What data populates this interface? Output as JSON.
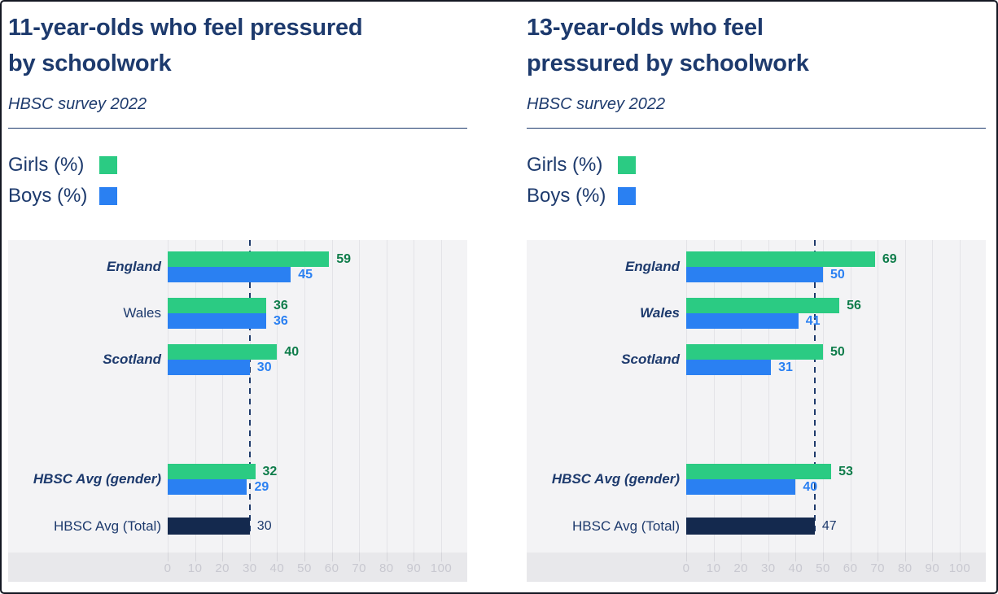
{
  "page": {
    "background": "#ffffff",
    "border_color": "#131722"
  },
  "colors": {
    "navy_text": "#1d3a6d",
    "girls_green": "#2bcb83",
    "boys_blue": "#2a80f2",
    "total_navy": "#14294e",
    "girls_value_text": "#0e7c4a",
    "boys_value_text": "#2a80f2",
    "panel_bg": "#f3f3f5",
    "axis_strip_bg": "#e8e8eb",
    "grid_line": "#e3e3e7",
    "tick_text": "#c8c8d0"
  },
  "charts": [
    {
      "title": "11-year-olds who feel pressured by schoolwork",
      "title_line1": "11-year-olds who feel pressured",
      "title_line2": "by schoolwork",
      "subtitle": "HBSC survey 2022",
      "legend": [
        {
          "label": "Girls (%)",
          "color": "#2bcb83"
        },
        {
          "label": "Boys (%)",
          "color": "#2a80f2"
        }
      ],
      "chart_data": {
        "type": "bar",
        "orientation": "horizontal",
        "title": "11-year-olds who feel pressured by schoolwork",
        "subtitle": "HBSC survey 2022",
        "categories": [
          "England",
          "Wales",
          "Scotland",
          "HBSC Avg (gender)",
          "HBSC Avg (Total)"
        ],
        "series": [
          {
            "name": "Girls (%)",
            "color": "#2bcb83",
            "values": [
              59,
              36,
              40,
              32,
              null
            ]
          },
          {
            "name": "Boys (%)",
            "color": "#2a80f2",
            "values": [
              45,
              36,
              30,
              29,
              null
            ]
          },
          {
            "name": "Total",
            "color": "#14294e",
            "values": [
              null,
              null,
              null,
              null,
              30
            ]
          }
        ],
        "rows": [
          {
            "label": "England",
            "emphasized": true,
            "girls": 59,
            "boys": 45
          },
          {
            "label": "Wales",
            "emphasized": false,
            "girls": 36,
            "boys": 36
          },
          {
            "label": "Scotland",
            "emphasized": true,
            "girls": 40,
            "boys": 30
          },
          {
            "label": "HBSC Avg (gender)",
            "emphasized": true,
            "girls": 32,
            "boys": 29
          }
        ],
        "total_row": {
          "label": "HBSC Avg (Total)",
          "emphasized": false,
          "value": 30
        },
        "reference_line": 30,
        "xlim": [
          0,
          110
        ],
        "ticks": [
          0,
          10,
          20,
          30,
          40,
          50,
          60,
          70,
          80,
          90,
          100
        ],
        "grid": true,
        "legend_position": "top-left"
      }
    },
    {
      "title": "13-year-olds who feel pressured by schoolwork",
      "title_line1": "13-year-olds who feel",
      "title_line2": "pressured by schoolwork",
      "subtitle": "HBSC survey 2022",
      "legend": [
        {
          "label": "Girls (%)",
          "color": "#2bcb83"
        },
        {
          "label": "Boys (%)",
          "color": "#2a80f2"
        }
      ],
      "chart_data": {
        "type": "bar",
        "orientation": "horizontal",
        "title": "13-year-olds who feel pressured by schoolwork",
        "subtitle": "HBSC survey 2022",
        "categories": [
          "England",
          "Wales",
          "Scotland",
          "HBSC Avg (gender)",
          "HBSC Avg (Total)"
        ],
        "series": [
          {
            "name": "Girls (%)",
            "color": "#2bcb83",
            "values": [
              69,
              56,
              50,
              53,
              null
            ]
          },
          {
            "name": "Boys (%)",
            "color": "#2a80f2",
            "values": [
              50,
              41,
              31,
              40,
              null
            ]
          },
          {
            "name": "Total",
            "color": "#14294e",
            "values": [
              null,
              null,
              null,
              null,
              47
            ]
          }
        ],
        "rows": [
          {
            "label": "England",
            "emphasized": true,
            "girls": 69,
            "boys": 50
          },
          {
            "label": "Wales",
            "emphasized": true,
            "girls": 56,
            "boys": 41
          },
          {
            "label": "Scotland",
            "emphasized": true,
            "girls": 50,
            "boys": 31
          },
          {
            "label": "HBSC Avg (gender)",
            "emphasized": true,
            "girls": 53,
            "boys": 40
          }
        ],
        "total_row": {
          "label": "HBSC Avg (Total)",
          "emphasized": false,
          "value": 47
        },
        "reference_line": 47,
        "xlim": [
          0,
          110
        ],
        "ticks": [
          0,
          10,
          20,
          30,
          40,
          50,
          60,
          70,
          80,
          90,
          100
        ],
        "grid": true,
        "legend_position": "top-left"
      }
    }
  ]
}
